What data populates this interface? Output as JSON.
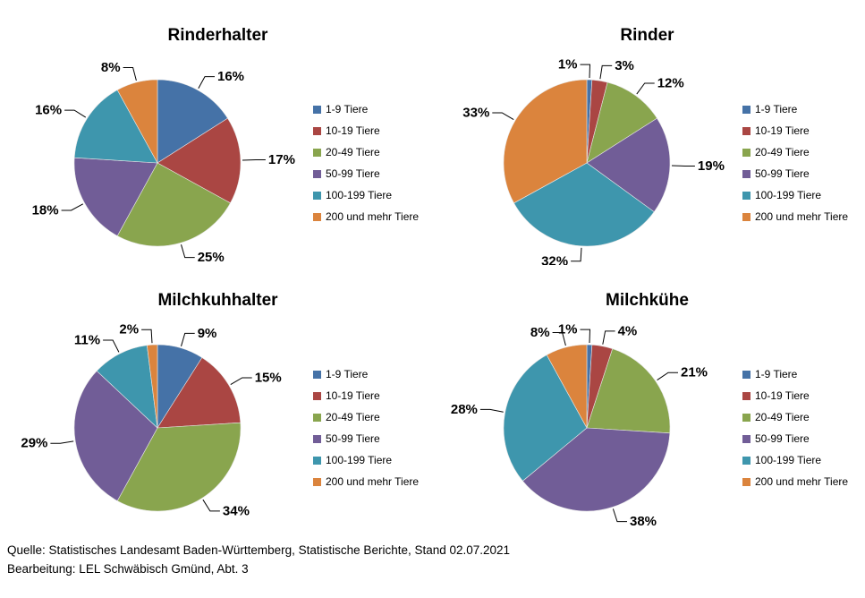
{
  "page": {
    "background": "#ffffff"
  },
  "shared": {
    "legend_labels": [
      "1-9 Tiere",
      "10-19 Tiere",
      "20-49 Tiere",
      "50-99 Tiere",
      "100-199 Tiere",
      "200 und mehr Tiere"
    ],
    "colors": [
      "#4572A7",
      "#AA4643",
      "#89A54E",
      "#715D97",
      "#3E96AD",
      "#DB843D"
    ]
  },
  "chart_data": [
    {
      "type": "pie",
      "title": "Rinderhalter",
      "categories": [
        "1-9 Tiere",
        "10-19 Tiere",
        "20-49 Tiere",
        "50-99 Tiere",
        "100-199 Tiere",
        "200 und mehr Tiere"
      ],
      "values": [
        16,
        17,
        25,
        18,
        16,
        8
      ],
      "slice_labels": [
        "16%",
        "17%",
        "25%",
        "18%",
        "16%",
        "8%"
      ],
      "unit": "%",
      "colors": [
        "#4572A7",
        "#AA4643",
        "#89A54E",
        "#715D97",
        "#3E96AD",
        "#DB843D"
      ],
      "legend_position": "right",
      "start_angle_deg": 0,
      "direction": "clockwise",
      "label_side_overrides": {}
    },
    {
      "type": "pie",
      "title": "Rinder",
      "categories": [
        "1-9 Tiere",
        "10-19 Tiere",
        "20-49 Tiere",
        "50-99 Tiere",
        "100-199 Tiere",
        "200 und mehr Tiere"
      ],
      "values": [
        1,
        3,
        12,
        19,
        32,
        33
      ],
      "slice_labels": [
        "1%",
        "3%",
        "12%",
        "19%",
        "32%",
        "33%"
      ],
      "unit": "%",
      "colors": [
        "#4572A7",
        "#AA4643",
        "#89A54E",
        "#715D97",
        "#3E96AD",
        "#DB843D"
      ],
      "legend_position": "right",
      "start_angle_deg": 0,
      "direction": "clockwise",
      "label_side_overrides": {
        "0": "left"
      }
    },
    {
      "type": "pie",
      "title": "Milchkuhhalter",
      "categories": [
        "1-9 Tiere",
        "10-19 Tiere",
        "20-49 Tiere",
        "50-99 Tiere",
        "100-199 Tiere",
        "200 und mehr Tiere"
      ],
      "values": [
        9,
        15,
        34,
        29,
        11,
        2
      ],
      "slice_labels": [
        "9%",
        "15%",
        "34%",
        "29%",
        "11%",
        "2%"
      ],
      "unit": "%",
      "colors": [
        "#4572A7",
        "#AA4643",
        "#89A54E",
        "#715D97",
        "#3E96AD",
        "#DB843D"
      ],
      "legend_position": "right",
      "start_angle_deg": 0,
      "direction": "clockwise",
      "label_side_overrides": {}
    },
    {
      "type": "pie",
      "title": "Milchkühe",
      "categories": [
        "1-9 Tiere",
        "10-19 Tiere",
        "20-49 Tiere",
        "50-99 Tiere",
        "100-199 Tiere",
        "200 und mehr Tiere"
      ],
      "values": [
        1,
        4,
        21,
        38,
        28,
        8
      ],
      "slice_labels": [
        "1%",
        "4%",
        "21%",
        "38%",
        "28%",
        "8%"
      ],
      "unit": "%",
      "colors": [
        "#4572A7",
        "#AA4643",
        "#89A54E",
        "#715D97",
        "#3E96AD",
        "#DB843D"
      ],
      "legend_position": "right",
      "start_angle_deg": 0,
      "direction": "clockwise",
      "label_side_overrides": {
        "0": "left"
      }
    }
  ],
  "footer": {
    "line1": "Quelle: Statistisches Landesamt Baden-Württemberg, Statistische Berichte, Stand 02.07.2021",
    "line2": "Bearbeitung: LEL Schwäbisch Gmünd, Abt. 3"
  }
}
